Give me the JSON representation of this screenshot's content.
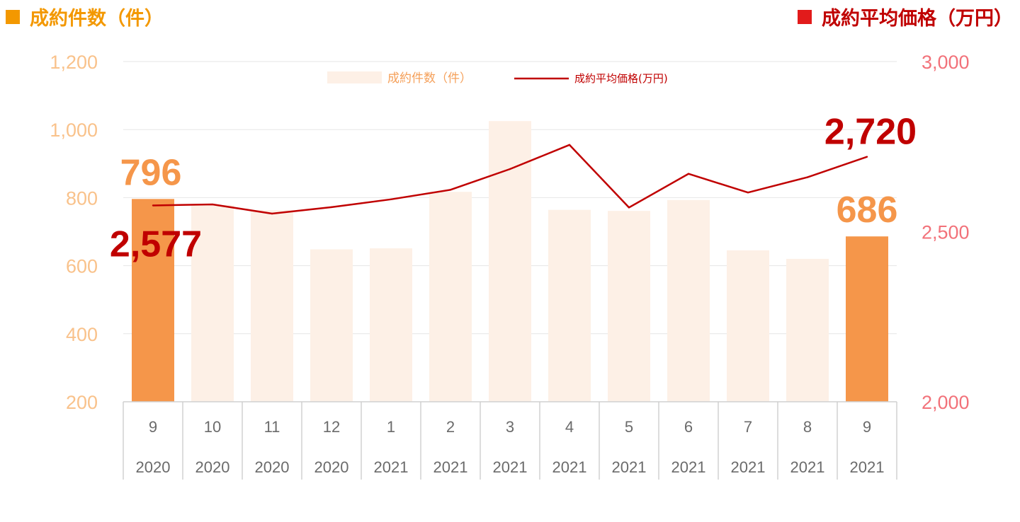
{
  "header": {
    "left_title": "成約件数（件）",
    "right_title": "成約平均価格（万円）"
  },
  "colors": {
    "bar_highlight": "#f5964a",
    "bar_muted": "#fdf0e6",
    "line": "#c00000",
    "left_axis": "#f9c28b",
    "right_axis": "#f2727a"
  },
  "chart_data": {
    "type": "bar",
    "categories": [
      "9",
      "10",
      "11",
      "12",
      "1",
      "2",
      "3",
      "4",
      "5",
      "6",
      "7",
      "8",
      "9"
    ],
    "years": [
      "2020",
      "2020",
      "2020",
      "2020",
      "2021",
      "2021",
      "2021",
      "2021",
      "2021",
      "2021",
      "2021",
      "2021",
      "2021"
    ],
    "series": [
      {
        "name": "成約件数（件）",
        "type": "bar",
        "axis": "left",
        "values": [
          796,
          778,
          763,
          648,
          651,
          817,
          1025,
          764,
          761,
          793,
          645,
          620,
          686
        ],
        "highlight": [
          true,
          false,
          false,
          false,
          false,
          false,
          false,
          false,
          false,
          false,
          false,
          false,
          true
        ]
      },
      {
        "name": "成約平均価格(万円)",
        "type": "line",
        "axis": "right",
        "values": [
          2577,
          2580,
          2553,
          2572,
          2595,
          2623,
          2684,
          2755,
          2571,
          2670,
          2615,
          2660,
          2720
        ]
      }
    ],
    "y_left": {
      "min": 200,
      "max": 1200,
      "ticks": [
        "200",
        "400",
        "600",
        "800",
        "1,000",
        "1,200"
      ]
    },
    "y_right": {
      "min": 2000,
      "max": 3000,
      "ticks": [
        "2,000",
        "2,500",
        "3,000"
      ]
    },
    "data_labels": [
      {
        "series": 0,
        "index": 0,
        "text": "796"
      },
      {
        "series": 0,
        "index": 12,
        "text": "686"
      },
      {
        "series": 1,
        "index": 0,
        "text": "2,577"
      },
      {
        "series": 1,
        "index": 12,
        "text": "2,720"
      }
    ],
    "legend": {
      "position": "top-center"
    },
    "grid": true
  }
}
